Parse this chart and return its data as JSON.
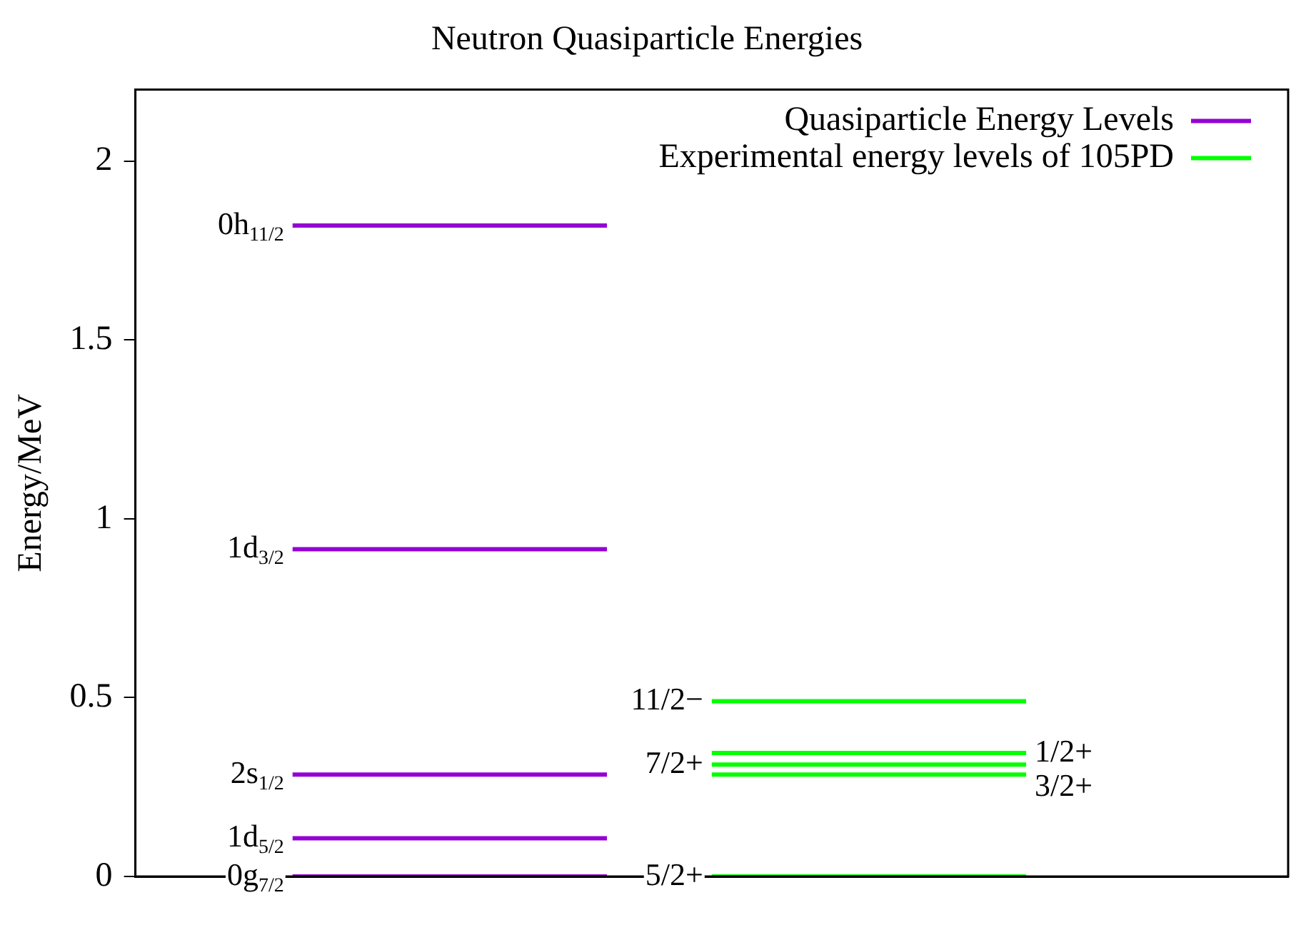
{
  "chart_data": {
    "type": "line",
    "title": "Neutron Quasiparticle Energies",
    "ylabel": "Energy/MeV",
    "categories": [
      null,
      null,
      null,
      null,
      null,
      null,
      null,
      null,
      null,
      null,
      null
    ],
    "series": [
      {
        "name": "Quasiparticle Energy Levels",
        "color": "#9400d3",
        "values": [
          null,
          null,
          null,
          null,
          null,
          null,
          null,
          null,
          null,
          null,
          null
        ]
      },
      {
        "name": "Experimental energy levels of 105PD",
        "color": "#00ff00",
        "values": [
          null,
          null,
          null,
          null,
          null,
          null,
          null,
          null,
          null,
          null,
          null
        ]
      },
      {
        "name": "0g$_{7/2}$",
        "color": "#9400d3",
        "values": [
          null,
          0,
          0,
          0,
          0,
          null,
          null,
          null,
          null,
          null,
          null
        ]
      },
      {
        "name": "1d$_{5/2}$",
        "color": "#9401d3",
        "values": [
          null,
          0.107,
          0.107,
          0.107,
          0.107,
          null,
          null,
          null,
          null,
          null,
          null
        ]
      },
      {
        "name": "2s$_{1/2}$",
        "color": "#9402d3",
        "values": [
          null,
          0.285,
          0.285,
          0.285,
          0.285,
          null,
          null,
          null,
          null,
          null,
          null
        ]
      },
      {
        "name": "1d$_{3/2}$",
        "color": "#9403d3",
        "values": [
          null,
          0.915,
          0.915,
          0.915,
          0.915,
          null,
          null,
          null,
          null,
          null,
          null
        ]
      },
      {
        "name": "0h$_{11/2}$",
        "color": "#9404d3",
        "values": [
          null,
          1.82,
          1.82,
          1.82,
          1.82,
          null,
          null,
          null,
          null,
          null,
          null
        ]
      },
      {
        "name": "5/2+",
        "color": "#00ff00",
        "values": [
          null,
          null,
          null,
          null,
          null,
          0,
          0,
          0,
          0,
          null,
          null
        ]
      },
      {
        "name": "11/2−",
        "color": "#01ff00",
        "values": [
          null,
          null,
          null,
          null,
          null,
          0.49,
          0.49,
          0.49,
          0.49,
          null,
          null
        ]
      },
      {
        "name": "7/2+",
        "color": "#02ff00",
        "values": [
          null,
          null,
          null,
          null,
          null,
          0.313,
          0.313,
          0.313,
          0.313,
          null,
          null
        ]
      },
      {
        "name": "1/2+",
        "color": "#03ff00",
        "values": [
          null,
          null,
          null,
          null,
          null,
          0.345,
          0.345,
          0.345,
          0.345,
          null,
          null
        ]
      },
      {
        "name": "3/2+",
        "color": "#04ff00",
        "values": [
          null,
          null,
          null,
          null,
          null,
          0.285,
          0.285,
          0.285,
          0.285,
          null,
          null
        ]
      }
    ],
    "ylim": [
      0,
      2.2
    ],
    "yticks": [
      0,
      0.5,
      1,
      1.5,
      2
    ],
    "tick_labels": "y",
    "grid": false,
    "legend": "top right",
    "marker": "none",
    "line_style": "solid"
  }
}
